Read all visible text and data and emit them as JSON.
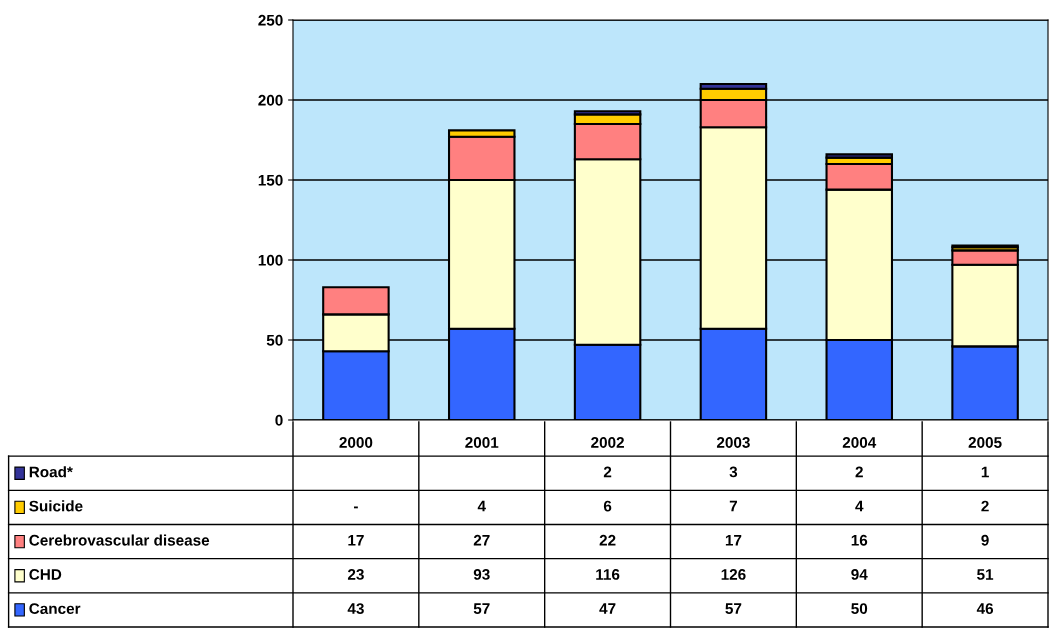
{
  "chart_data": {
    "type": "bar",
    "stacked": true,
    "categories": [
      "2000",
      "2001",
      "2002",
      "2003",
      "2004",
      "2005"
    ],
    "series": [
      {
        "name": "Cancer",
        "color": "#3366ff",
        "values": [
          43,
          57,
          47,
          57,
          50,
          46
        ],
        "value_labels": [
          "43",
          "57",
          "47",
          "57",
          "50",
          "46"
        ]
      },
      {
        "name": "CHD",
        "color": "#ffffcc",
        "values": [
          23,
          93,
          116,
          126,
          94,
          51
        ],
        "value_labels": [
          "23",
          "93",
          "116",
          "126",
          "94",
          "51"
        ]
      },
      {
        "name": "Cerebrovascular disease",
        "color": "#ff8080",
        "values": [
          17,
          27,
          22,
          17,
          16,
          9
        ],
        "value_labels": [
          "17",
          "27",
          "22",
          "17",
          "16",
          "9"
        ]
      },
      {
        "name": "Suicide",
        "color": "#ffcc00",
        "values": [
          null,
          4,
          6,
          7,
          4,
          2
        ],
        "value_labels": [
          "-",
          "4",
          "6",
          "7",
          "4",
          "2"
        ]
      },
      {
        "name": "Road*",
        "color": "#333399",
        "values": [
          null,
          null,
          2,
          3,
          2,
          1
        ],
        "value_labels": [
          null,
          null,
          "2",
          "3",
          "2",
          "1"
        ]
      }
    ],
    "ylim": [
      0,
      250
    ],
    "yticks": [
      0,
      50,
      100,
      150,
      200,
      250
    ],
    "grid": "y",
    "legend": "bottom left"
  }
}
